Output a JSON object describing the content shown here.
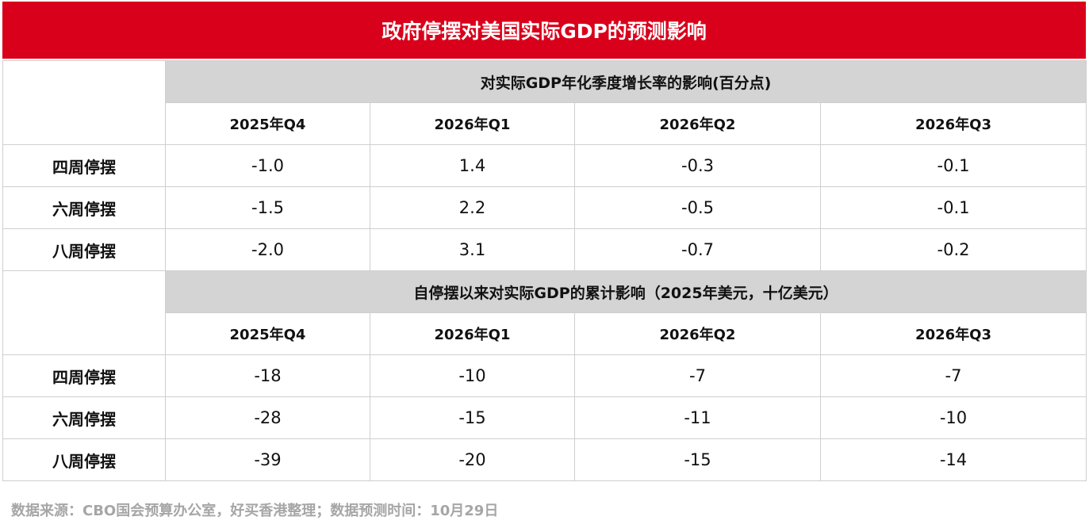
{
  "title": "政府停摆对美国实际GDP的预测影响",
  "chart_data": {
    "type": "table",
    "title": "政府停摆对美国实际GDP的预测影响",
    "sections": [
      {
        "header": "对实际GDP年化季度增长率的影响(百分点)",
        "columns": [
          "2025年Q4",
          "2026年Q1",
          "2026年Q2",
          "2026年Q3"
        ],
        "rows": [
          {
            "label": "四周停摆",
            "values": [
              "-1.0",
              "1.4",
              "-0.3",
              "-0.1"
            ]
          },
          {
            "label": "六周停摆",
            "values": [
              "-1.5",
              "2.2",
              "-0.5",
              "-0.1"
            ]
          },
          {
            "label": "八周停摆",
            "values": [
              "-2.0",
              "3.1",
              "-0.7",
              "-0.2"
            ]
          }
        ]
      },
      {
        "header": "自停摆以来对实际GDP的累计影响（2025年美元，十亿美元）",
        "columns": [
          "2025年Q4",
          "2026年Q1",
          "2026年Q2",
          "2026年Q3"
        ],
        "rows": [
          {
            "label": "四周停摆",
            "values": [
              "-18",
              "-10",
              "-7",
              "-7"
            ]
          },
          {
            "label": "六周停摆",
            "values": [
              "-28",
              "-15",
              "-11",
              "-10"
            ]
          },
          {
            "label": "八周停摆",
            "values": [
              "-39",
              "-20",
              "-15",
              "-14"
            ]
          }
        ]
      }
    ]
  },
  "footer": "数据来源：CBO国会预算办公室，好买香港整理；数据预测时间：10月29日",
  "colors": {
    "title_background": "#d9001b",
    "section_header_background": "#d4d4d4",
    "footer_text": "#a6a6a6"
  }
}
